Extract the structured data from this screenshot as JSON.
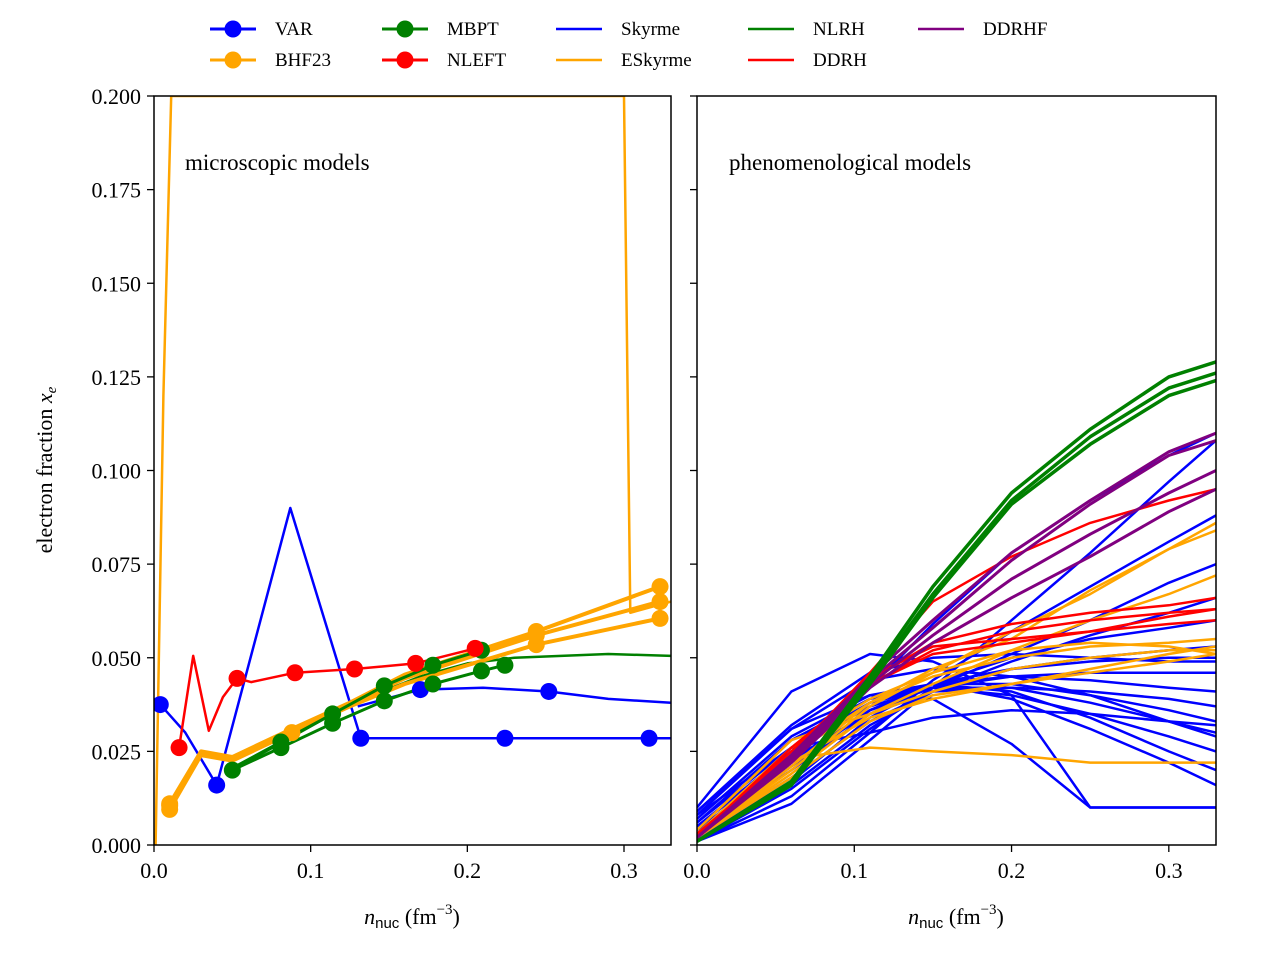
{
  "legend": {
    "placement": "top-center",
    "columns": 5,
    "entries": [
      {
        "label": "VAR",
        "color": "#0000ff",
        "marker": true
      },
      {
        "label": "BHF23",
        "color": "#ffa500",
        "marker": true
      },
      {
        "label": "MBPT",
        "color": "#008000",
        "marker": true
      },
      {
        "label": "NLEFT",
        "color": "#ff0000",
        "marker": true
      },
      {
        "label": "Skyrme",
        "color": "#0000ff",
        "marker": false
      },
      {
        "label": "ESkyrme",
        "color": "#ffa500",
        "marker": false
      },
      {
        "label": "NLRH",
        "color": "#008000",
        "marker": false
      },
      {
        "label": "DDRH",
        "color": "#ff0000",
        "marker": false
      },
      {
        "label": "DDRHF",
        "color": "#800080",
        "marker": false
      }
    ]
  },
  "chart_data": [
    {
      "type": "line",
      "panel": "left",
      "annotation": "microscopic models",
      "xlabel_main": "n",
      "xlabel_sub": "nuc",
      "xlabel_unit": " (fm",
      "xlabel_exp": "−3",
      "xlabel_close": ")",
      "ylabel_main": "electron fraction ",
      "ylabel_var": "x",
      "ylabel_sub": "e",
      "xlim": [
        0,
        0.33
      ],
      "ylim": [
        0,
        0.2
      ],
      "xticks": [
        "0.0",
        "0.1",
        "0.2",
        "0.3"
      ],
      "yticks": [
        "0.000",
        "0.025",
        "0.050",
        "0.075",
        "0.100",
        "0.125",
        "0.150",
        "0.175",
        "0.200"
      ],
      "series": [
        {
          "legend": "BHF23",
          "color": "#ffa500",
          "width": 2.5,
          "marker": false,
          "x": [
            0.001,
            0.006,
            0.011,
            0.3,
            0.304,
            0.33
          ],
          "y": [
            0.0,
            0.12,
            0.2,
            0.2,
            0.062,
            0.065
          ]
        },
        {
          "legend": "VAR",
          "color": "#0000ff",
          "width": 2.5,
          "marker": true,
          "x": [
            0.004,
            0.02,
            0.04,
            0.087,
            0.132,
            0.224,
            0.316,
            0.33
          ],
          "y": [
            0.0375,
            0.03,
            0.016,
            0.09,
            0.0285,
            0.0285,
            0.0285,
            0.0285
          ],
          "markers": [
            0,
            2,
            4,
            5,
            6
          ]
        },
        {
          "legend": "VAR",
          "color": "#0000ff",
          "width": 2.5,
          "marker": true,
          "x": [
            0.13,
            0.17,
            0.21,
            0.252,
            0.29,
            0.33
          ],
          "y": [
            0.037,
            0.0415,
            0.042,
            0.041,
            0.039,
            0.038
          ],
          "markers": [
            1,
            3
          ]
        },
        {
          "legend": "MBPT",
          "color": "#008000",
          "width": 2.5,
          "marker": false,
          "x": [
            0.05,
            0.08,
            0.11,
            0.14,
            0.17,
            0.2,
            0.23,
            0.26,
            0.29,
            0.33
          ],
          "y": [
            0.02,
            0.027,
            0.034,
            0.04,
            0.045,
            0.0485,
            0.05,
            0.0505,
            0.051,
            0.0505
          ]
        },
        {
          "legend": "BHF23",
          "color": "#ffa500",
          "width": 4,
          "marker": true,
          "x": [
            0.01,
            0.03,
            0.05,
            0.088,
            0.125,
            0.16,
            0.2,
            0.244,
            0.323
          ],
          "y": [
            0.0095,
            0.024,
            0.0225,
            0.03,
            0.037,
            0.043,
            0.048,
            0.0535,
            0.0605
          ],
          "markers": [
            0,
            3,
            7,
            8
          ]
        },
        {
          "legend": "BHF23",
          "color": "#ffa500",
          "width": 4,
          "marker": true,
          "x": [
            0.01,
            0.03,
            0.05,
            0.088,
            0.125,
            0.16,
            0.2,
            0.244,
            0.323
          ],
          "y": [
            0.0105,
            0.0245,
            0.023,
            0.0305,
            0.0375,
            0.0445,
            0.05,
            0.056,
            0.065
          ],
          "markers": [
            0,
            7,
            8
          ]
        },
        {
          "legend": "BHF23",
          "color": "#ffa500",
          "width": 4,
          "marker": true,
          "x": [
            0.01,
            0.03,
            0.05,
            0.088,
            0.125,
            0.16,
            0.2,
            0.244,
            0.323
          ],
          "y": [
            0.011,
            0.025,
            0.0235,
            0.031,
            0.038,
            0.0455,
            0.051,
            0.057,
            0.069
          ],
          "markers": [
            0,
            7,
            8
          ]
        },
        {
          "legend": "MBPT",
          "color": "#008000",
          "width": 3,
          "marker": true,
          "x": [
            0.05,
            0.081,
            0.114,
            0.147,
            0.178,
            0.209,
            0.224
          ],
          "y": [
            0.02,
            0.026,
            0.0325,
            0.0385,
            0.043,
            0.0465,
            0.048
          ],
          "markers": [
            0,
            1,
            2,
            3,
            4,
            5,
            6
          ]
        },
        {
          "legend": "MBPT",
          "color": "#008000",
          "width": 3,
          "marker": true,
          "x": [
            0.05,
            0.081,
            0.114,
            0.147,
            0.178,
            0.209
          ],
          "y": [
            0.0205,
            0.0275,
            0.035,
            0.0425,
            0.048,
            0.052
          ],
          "markers": [
            1,
            2,
            3,
            4,
            5
          ]
        },
        {
          "legend": "NLEFT",
          "color": "#ff0000",
          "width": 2.5,
          "marker": true,
          "x": [
            0.016,
            0.025,
            0.035,
            0.044,
            0.053,
            0.062,
            0.09,
            0.128,
            0.167,
            0.205
          ],
          "y": [
            0.026,
            0.0505,
            0.0305,
            0.0395,
            0.0445,
            0.0435,
            0.046,
            0.047,
            0.0485,
            0.0525
          ],
          "markers": [
            0,
            4,
            6,
            7,
            8,
            9
          ]
        }
      ]
    },
    {
      "type": "line",
      "panel": "right",
      "annotation": "phenomenological models",
      "xlabel_main": "n",
      "xlabel_sub": "nuc",
      "xlabel_unit": " (fm",
      "xlabel_exp": "−3",
      "xlabel_close": ")",
      "xlim": [
        0,
        0.33
      ],
      "ylim": [
        0,
        0.2
      ],
      "xticks": [
        "0.0",
        "0.1",
        "0.2",
        "0.3"
      ],
      "x": [
        0.0,
        0.06,
        0.11,
        0.15,
        0.2,
        0.25,
        0.3,
        0.33
      ],
      "groups": [
        {
          "legend": "Skyrme",
          "color": "#0000ff",
          "width": 2.5,
          "lines": [
            [
              0.001,
              0.011,
              0.028,
              0.042,
              0.06,
              0.078,
              0.097,
              0.108
            ],
            [
              0.001,
              0.013,
              0.03,
              0.044,
              0.057,
              0.069,
              0.081,
              0.088
            ],
            [
              0.001,
              0.015,
              0.031,
              0.042,
              0.051,
              0.06,
              0.07,
              0.075
            ],
            [
              0.001,
              0.016,
              0.032,
              0.041,
              0.049,
              0.056,
              0.062,
              0.066
            ],
            [
              0.002,
              0.017,
              0.034,
              0.043,
              0.05,
              0.055,
              0.058,
              0.06
            ],
            [
              0.002,
              0.018,
              0.033,
              0.041,
              0.047,
              0.05,
              0.052,
              0.053
            ],
            [
              0.003,
              0.02,
              0.035,
              0.043,
              0.047,
              0.049,
              0.05,
              0.05
            ],
            [
              0.003,
              0.021,
              0.036,
              0.042,
              0.045,
              0.046,
              0.046,
              0.046
            ],
            [
              0.004,
              0.022,
              0.036,
              0.043,
              0.045,
              0.044,
              0.042,
              0.041
            ],
            [
              0.004,
              0.023,
              0.035,
              0.041,
              0.042,
              0.041,
              0.039,
              0.037
            ],
            [
              0.005,
              0.024,
              0.038,
              0.043,
              0.043,
              0.04,
              0.036,
              0.033
            ],
            [
              0.005,
              0.025,
              0.037,
              0.042,
              0.042,
              0.038,
              0.033,
              0.03
            ],
            [
              0.006,
              0.026,
              0.038,
              0.042,
              0.04,
              0.035,
              0.029,
              0.025
            ],
            [
              0.006,
              0.028,
              0.039,
              0.043,
              0.041,
              0.034,
              0.025,
              0.02
            ],
            [
              0.007,
              0.029,
              0.04,
              0.043,
              0.039,
              0.031,
              0.022,
              0.016
            ],
            [
              0.008,
              0.031,
              0.044,
              0.047,
              0.045,
              0.04,
              0.033,
              0.029
            ],
            [
              0.009,
              0.032,
              0.046,
              0.05,
              0.051,
              0.05,
              0.049,
              0.049
            ],
            [
              0.008,
              0.026,
              0.03,
              0.034,
              0.036,
              0.035,
              0.033,
              0.032
            ],
            [
              0.01,
              0.041,
              0.051,
              0.049,
              0.04,
              0.01,
              0.01,
              0.01
            ],
            [
              0.009,
              0.031,
              0.04,
              0.039,
              0.027,
              0.01,
              0.01,
              0.01
            ],
            [
              0.003,
              0.022,
              0.042,
              0.059,
              0.078,
              0.092,
              0.104,
              0.11
            ]
          ]
        },
        {
          "legend": "ESkyrme",
          "color": "#ffa500",
          "width": 2.5,
          "lines": [
            [
              0.002,
              0.02,
              0.037,
              0.046,
              0.057,
              0.067,
              0.079,
              0.086
            ],
            [
              0.002,
              0.019,
              0.035,
              0.043,
              0.052,
              0.06,
              0.067,
              0.072
            ],
            [
              0.002,
              0.018,
              0.033,
              0.04,
              0.043,
              0.046,
              0.049,
              0.051
            ],
            [
              0.003,
              0.024,
              0.038,
              0.045,
              0.05,
              0.053,
              0.054,
              0.055
            ],
            [
              0.003,
              0.022,
              0.034,
              0.039,
              0.043,
              0.047,
              0.051,
              0.053
            ],
            [
              0.004,
              0.028,
              0.035,
              0.041,
              0.047,
              0.05,
              0.052,
              0.052
            ],
            [
              0.003,
              0.026,
              0.039,
              0.046,
              0.052,
              0.054,
              0.053,
              0.051
            ],
            [
              0.002,
              0.021,
              0.038,
              0.047,
              0.055,
              0.068,
              0.079,
              0.084
            ],
            [
              0.003,
              0.023,
              0.026,
              0.025,
              0.024,
              0.022,
              0.022,
              0.022
            ]
          ]
        },
        {
          "legend": "DDRH",
          "color": "#ff0000",
          "width": 2.5,
          "lines": [
            [
              0.002,
              0.024,
              0.046,
              0.065,
              0.077,
              0.086,
              0.092,
              0.095
            ],
            [
              0.002,
              0.023,
              0.043,
              0.052,
              0.057,
              0.06,
              0.062,
              0.063
            ],
            [
              0.002,
              0.025,
              0.044,
              0.054,
              0.059,
              0.062,
              0.064,
              0.066
            ],
            [
              0.003,
              0.024,
              0.045,
              0.053,
              0.055,
              0.057,
              0.059,
              0.06
            ],
            [
              0.002,
              0.026,
              0.043,
              0.051,
              0.054,
              0.057,
              0.061,
              0.063
            ]
          ]
        },
        {
          "legend": "DDRHF",
          "color": "#800080",
          "width": 3,
          "lines": [
            [
              0.002,
              0.024,
              0.045,
              0.06,
              0.078,
              0.092,
              0.105,
              0.11
            ],
            [
              0.002,
              0.023,
              0.043,
              0.056,
              0.071,
              0.083,
              0.094,
              0.1
            ],
            [
              0.002,
              0.022,
              0.042,
              0.054,
              0.066,
              0.077,
              0.089,
              0.095
            ],
            [
              0.002,
              0.023,
              0.044,
              0.058,
              0.076,
              0.091,
              0.104,
              0.108
            ]
          ]
        },
        {
          "legend": "NLRH",
          "color": "#008000",
          "width": 3.5,
          "lines": [
            [
              0.001,
              0.017,
              0.045,
              0.069,
              0.094,
              0.111,
              0.125,
              0.129
            ],
            [
              0.001,
              0.016,
              0.043,
              0.066,
              0.091,
              0.107,
              0.12,
              0.124
            ],
            [
              0.001,
              0.016,
              0.044,
              0.067,
              0.092,
              0.109,
              0.122,
              0.126
            ]
          ]
        }
      ]
    }
  ]
}
